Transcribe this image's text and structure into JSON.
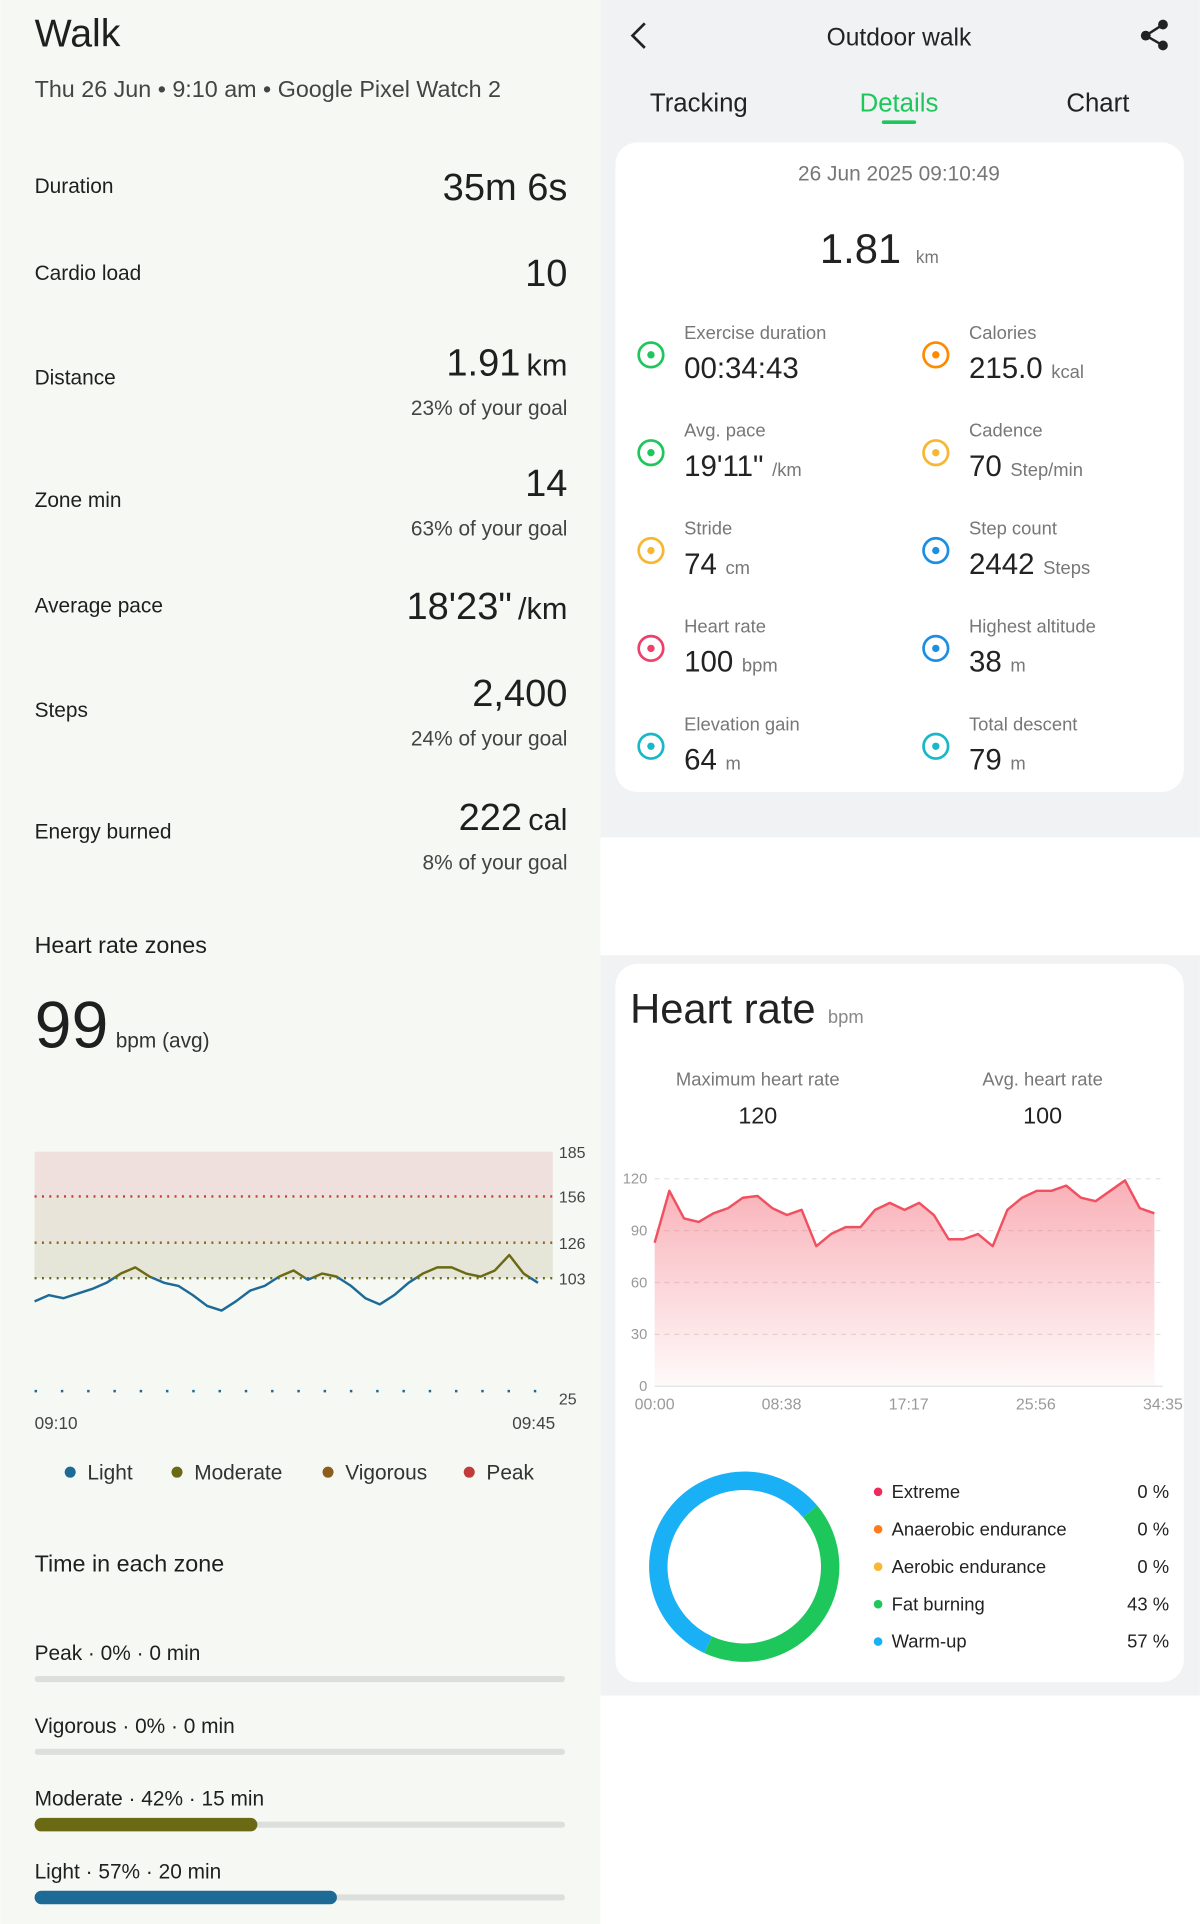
{
  "left": {
    "title": "Walk",
    "subtitle": "Thu 26 Jun • 9:10 am • Google Pixel Watch 2",
    "metrics": [
      {
        "label": "Duration",
        "value": "35m 6s"
      },
      {
        "label": "Cardio load",
        "value": "10"
      },
      {
        "label": "Distance",
        "value": "1.91",
        "unit": "km",
        "goal": "23% of your goal"
      },
      {
        "label": "Zone min",
        "value": "14",
        "goal": "63% of your goal"
      },
      {
        "label": "Average pace",
        "value": "18'23\"",
        "unit": "/km"
      },
      {
        "label": "Steps",
        "value": "2,400",
        "goal": "24% of your goal"
      },
      {
        "label": "Energy burned",
        "value": "222",
        "unit": "cal",
        "goal": "8% of your goal"
      }
    ],
    "hr_zones": {
      "title": "Heart rate zones",
      "avg": "99",
      "avg_unit": "bpm (avg)"
    },
    "time_in_zone": {
      "title": "Time in each zone",
      "rows": [
        {
          "label": "Peak · 0% · 0 min",
          "value": 0,
          "color": "#c23b3b"
        },
        {
          "label": "Vigorous · 0% · 0 min",
          "value": 0,
          "color": "#8b5e1a"
        },
        {
          "label": "Moderate · 42% · 15 min",
          "value": 42,
          "color": "#6b6a14"
        },
        {
          "label": "Light · 57% · 20 min",
          "value": 57,
          "color": "#1d6a96"
        }
      ]
    }
  },
  "right": {
    "title": "Outdoor walk",
    "tabs": [
      "Tracking",
      "Details",
      "Chart"
    ],
    "date": "26 Jun 2025 09:10:49",
    "distance": "1.81",
    "distance_unit": "km",
    "stats": [
      {
        "label": "Exercise duration",
        "value": "00:34:43",
        "color": "#1ec75c"
      },
      {
        "label": "Calories",
        "value": "215.0",
        "unit": "kcal",
        "color": "#ff8a00"
      },
      {
        "label": "Avg. pace",
        "value": "19'11\"",
        "unit": "/km",
        "color": "#1ec75c"
      },
      {
        "label": "Cadence",
        "value": "70",
        "unit": "Step/min",
        "color": "#f7b731"
      },
      {
        "label": "Stride",
        "value": "74",
        "unit": "cm",
        "color": "#f7b731"
      },
      {
        "label": "Step count",
        "value": "2442",
        "unit": "Steps",
        "color": "#1a8fe3"
      },
      {
        "label": "Heart rate",
        "value": "100",
        "unit": "bpm",
        "color": "#ef3f6b"
      },
      {
        "label": "Highest altitude",
        "value": "38",
        "unit": "m",
        "color": "#1a8fe3"
      },
      {
        "label": "Elevation gain",
        "value": "64",
        "unit": "m",
        "color": "#19b8c8"
      },
      {
        "label": "Total descent",
        "value": "79",
        "unit": "m",
        "color": "#19b8c8"
      }
    ],
    "heart_rate": {
      "title": "Heart rate",
      "unit": "bpm",
      "max_label": "Maximum heart rate",
      "max": "120",
      "avg_label": "Avg. heart rate",
      "avg": "100"
    }
  },
  "chart_data": [
    {
      "type": "line",
      "x": [
        0,
        1,
        2,
        3,
        4,
        5,
        6,
        7,
        8,
        9,
        10,
        11,
        12,
        13,
        14,
        15,
        16,
        17,
        18,
        19,
        20,
        21,
        22,
        23,
        24,
        25,
        26,
        27,
        28,
        29,
        30,
        31,
        32,
        33,
        34,
        35
      ],
      "values": [
        88,
        92,
        90,
        93,
        96,
        100,
        106,
        110,
        104,
        100,
        98,
        92,
        85,
        82,
        88,
        95,
        98,
        104,
        108,
        102,
        106,
        104,
        98,
        90,
        86,
        92,
        100,
        106,
        110,
        110,
        106,
        104,
        108,
        118,
        106,
        100
      ],
      "xlim": [
        0,
        35
      ],
      "xticks": [
        {
          "value": 0,
          "label": "09:10"
        },
        {
          "value": 35,
          "label": "09:45"
        }
      ],
      "ylim": [
        25,
        185
      ],
      "yticks": [
        25,
        103,
        126,
        156,
        185
      ],
      "zones": [
        {
          "name": "Light",
          "color": "#1d6a96",
          "min": 25
        },
        {
          "name": "Moderate",
          "color": "#6b6a14",
          "min": 103
        },
        {
          "name": "Vigorous",
          "color": "#8b5e1a",
          "min": 126
        },
        {
          "name": "Peak",
          "color": "#c23b3b",
          "min": 156
        }
      ]
    },
    {
      "type": "area",
      "x": [
        0,
        1,
        2,
        3,
        4,
        5,
        6,
        7,
        8,
        9,
        10,
        11,
        12,
        13,
        14,
        15,
        16,
        17,
        18,
        19,
        20,
        21,
        22,
        23,
        24,
        25,
        26,
        27,
        28,
        29,
        30,
        31,
        32,
        33,
        34
      ],
      "values": [
        83,
        113,
        97,
        95,
        100,
        103,
        109,
        110,
        103,
        99,
        102,
        81,
        88,
        92,
        92,
        102,
        106,
        102,
        106,
        99,
        85,
        85,
        88,
        81,
        102,
        109,
        113,
        113,
        116,
        109,
        107,
        113,
        119,
        103,
        100
      ],
      "color": "#f0505f",
      "xlim": [
        0,
        34.583
      ],
      "xticks": [
        {
          "value": 0,
          "label": "00:00"
        },
        {
          "value": 8.633,
          "label": "08:38"
        },
        {
          "value": 17.283,
          "label": "17:17"
        },
        {
          "value": 25.933,
          "label": "25:56"
        },
        {
          "value": 34.583,
          "label": "34:35"
        }
      ],
      "ylim": [
        0,
        120
      ],
      "yticks": [
        0,
        30,
        60,
        90,
        120
      ],
      "grid": true
    },
    {
      "type": "donut",
      "categories": [
        "Extreme",
        "Anaerobic endurance",
        "Aerobic endurance",
        "Fat burning",
        "Warm-up"
      ],
      "values": [
        0,
        0,
        0,
        43,
        57
      ],
      "value_labels": [
        "0 %",
        "0 %",
        "0 %",
        "43 %",
        "57 %"
      ],
      "colors": [
        "#ee2a5d",
        "#ff7a1a",
        "#f7b731",
        "#1ec75c",
        "#1ab0f5"
      ]
    }
  ]
}
